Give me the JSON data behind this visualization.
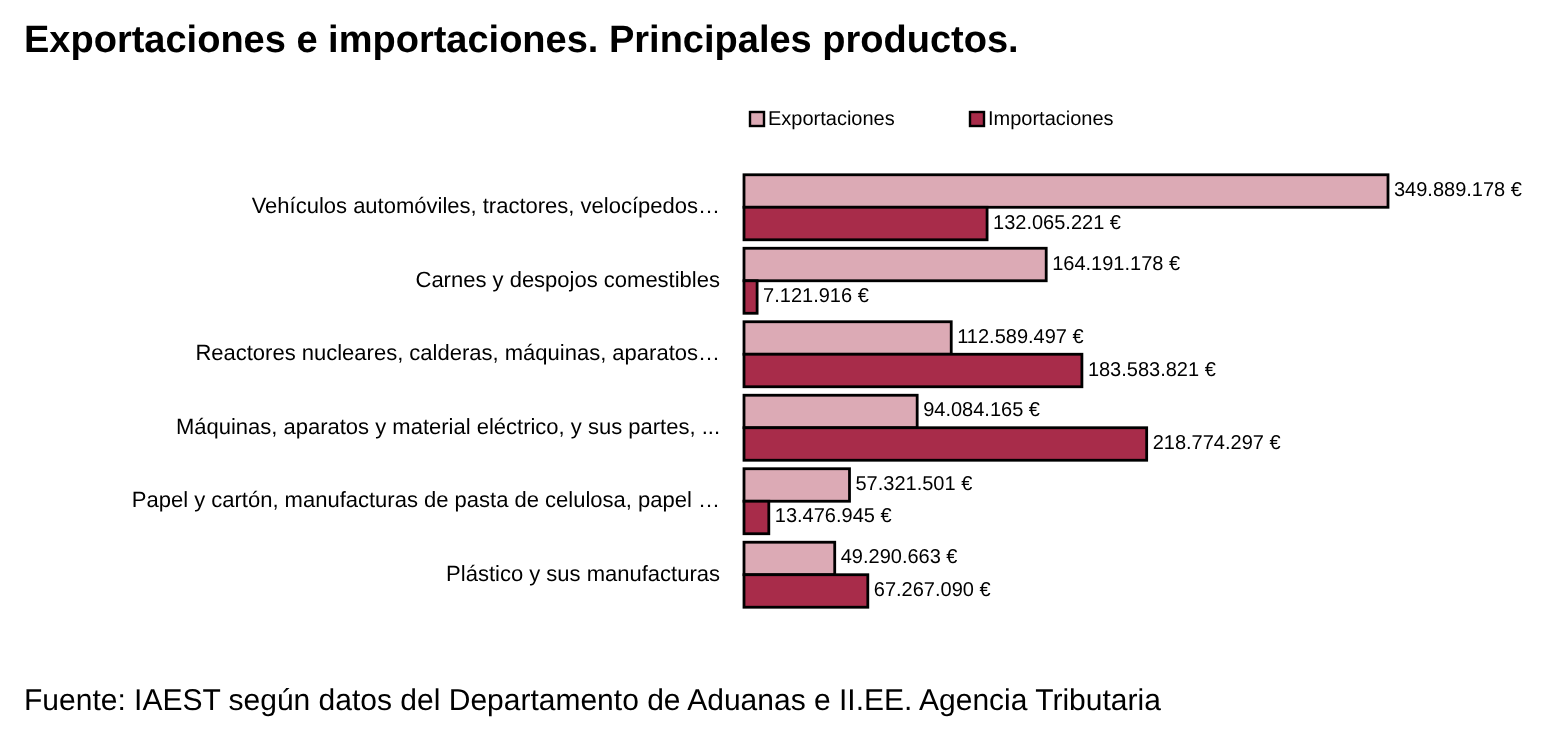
{
  "chart_data": {
    "type": "bar",
    "orientation": "horizontal",
    "title": "Exportaciones e importaciones. Principales productos.",
    "categories": [
      "Vehículos automóviles, tractores, velocípedos…",
      "Carnes y despojos comestibles",
      "Reactores nucleares, calderas, máquinas, aparatos…",
      "Máquinas, aparatos y material eléctrico, y sus partes, ...",
      "Papel y cartón, manufacturas de pasta de celulosa, papel …",
      "Plástico y sus manufacturas"
    ],
    "series": [
      {
        "name": "Exportaciones",
        "color": "#dcaab5",
        "values": [
          349889178,
          164191178,
          112589497,
          94084165,
          57321501,
          49290663
        ],
        "value_labels": [
          "349.889.178 €",
          "164.191.178 €",
          "112.589.497 €",
          "94.084.165 €",
          "57.321.501 €",
          "49.290.663 €"
        ]
      },
      {
        "name": "Importaciones",
        "color": "#a82c4a",
        "values": [
          132065221,
          7121916,
          183583821,
          218774297,
          13476945,
          67267090
        ],
        "value_labels": [
          "132.065.221 €",
          "7.121.916 €",
          "183.583.821 €",
          "218.774.297 €",
          "13.476.945 €",
          "67.267.090 €"
        ]
      }
    ],
    "legend": "top",
    "grid": false,
    "annotations": [
      "Fuente: IAEST según datos del Departamento de Aduanas e II.EE. Agencia Tributaria"
    ]
  }
}
